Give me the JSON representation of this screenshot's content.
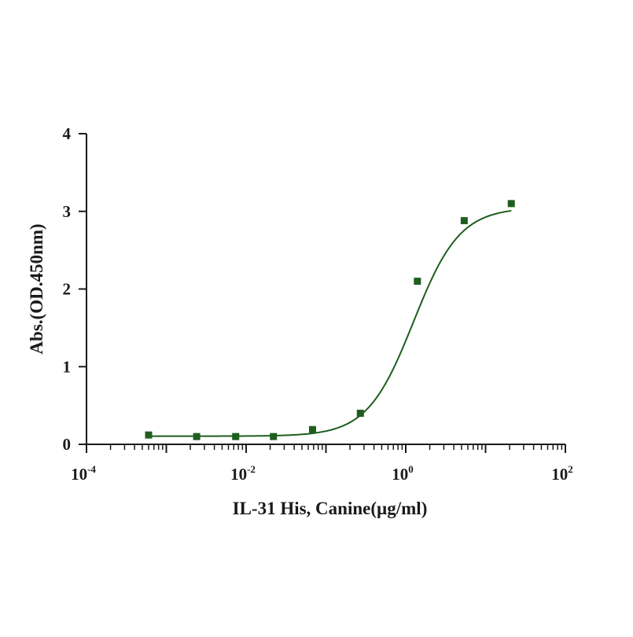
{
  "chart_data": {
    "type": "scatter",
    "xlabel": "IL-31 His, Canine(µg/ml)",
    "ylabel": "Abs.(OD.450nm)",
    "x_scale": "log",
    "xlim": [
      0.0001,
      100
    ],
    "ylim": [
      0,
      4
    ],
    "y_ticks": [
      "0",
      "1",
      "2",
      "3",
      "4"
    ],
    "x_ticks": [
      {
        "base": "10",
        "exp": "-4"
      },
      {
        "base": "10",
        "exp": "-2"
      },
      {
        "base": "10",
        "exp": "0"
      },
      {
        "base": "10",
        "exp": "2"
      }
    ],
    "grid": false,
    "series": [
      {
        "color": "#1e5e1e",
        "marker": "square",
        "x": [
          0.0006,
          0.0024,
          0.0074,
          0.022,
          0.068,
          0.27,
          1.4,
          5.4,
          21
        ],
        "y": [
          0.12,
          0.1,
          0.1,
          0.1,
          0.19,
          0.4,
          2.1,
          2.88,
          3.1
        ]
      }
    ],
    "fit_curve": {
      "model": "4PL",
      "bottom": 0.105,
      "top": 3.05,
      "ec50": 1.25,
      "hill": 1.5,
      "color": "#1e5e1e"
    }
  }
}
